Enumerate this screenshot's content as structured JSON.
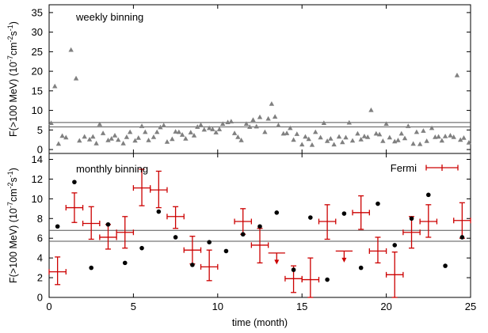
{
  "chart_data": [
    {
      "type": "scatter",
      "panel": "top",
      "annotation": "weekly binning",
      "ylabel": "F(>100 MeV) (10",
      "ylabel_exp1": "-7",
      "ylabel_mid": "cm",
      "ylabel_exp2": "-2",
      "ylabel_s": "s",
      "ylabel_exp3": "-1",
      "ylabel_end": ")",
      "ylim": [
        -1,
        37
      ],
      "yticks": [
        0,
        5,
        10,
        15,
        20,
        25,
        30,
        35
      ],
      "hlines": [
        5.8,
        6.9
      ],
      "colors": {
        "marker": "#808080"
      },
      "marker": "triangle",
      "x": [
        0.12,
        0.34,
        0.56,
        0.78,
        1.0,
        1.3,
        1.6,
        1.8,
        2.1,
        2.4,
        2.6,
        2.8,
        3.0,
        3.2,
        3.5,
        3.7,
        3.9,
        4.1,
        4.4,
        4.6,
        4.8,
        5.1,
        5.3,
        5.5,
        5.7,
        5.9,
        6.2,
        6.4,
        6.6,
        6.8,
        7.0,
        7.3,
        7.5,
        7.7,
        7.9,
        8.1,
        8.4,
        8.6,
        8.8,
        9.0,
        9.2,
        9.5,
        9.7,
        9.9,
        10.1,
        10.3,
        10.6,
        10.8,
        11.0,
        11.2,
        11.4,
        11.7,
        11.9,
        12.1,
        12.3,
        12.5,
        12.8,
        13.0,
        13.2,
        13.4,
        13.6,
        13.9,
        14.1,
        14.3,
        14.5,
        14.7,
        15.0,
        15.2,
        15.4,
        15.6,
        15.8,
        16.1,
        16.3,
        16.5,
        16.7,
        16.9,
        17.2,
        17.4,
        17.6,
        17.8,
        18.0,
        18.3,
        18.5,
        18.7,
        18.9,
        19.1,
        19.4,
        19.6,
        19.8,
        20.0,
        20.2,
        20.5,
        20.7,
        20.9,
        21.1,
        21.3,
        21.6,
        21.8,
        22.0,
        22.2,
        22.4,
        22.7,
        22.9,
        23.1,
        23.3,
        23.5,
        23.8,
        24.0,
        24.2,
        24.4,
        24.6,
        24.9
      ],
      "y": [
        6.8,
        16.2,
        1.5,
        3.5,
        3.1,
        25.5,
        18.2,
        2.3,
        3.3,
        2.6,
        3.3,
        1.6,
        6.5,
        4.2,
        2.4,
        2.8,
        3.6,
        2.5,
        1.6,
        3.2,
        4.5,
        2.3,
        3.0,
        6.0,
        4.5,
        2.4,
        3.2,
        4.5,
        5.7,
        6.2,
        2.0,
        2.7,
        4.6,
        4.5,
        3.8,
        2.8,
        4.4,
        3.6,
        5.8,
        6.3,
        5.1,
        5.5,
        5.2,
        4.4,
        5.2,
        6.6,
        7.0,
        7.2,
        4.2,
        3.2,
        2.4,
        6.6,
        5.8,
        7.6,
        5.9,
        8.3,
        4.5,
        7.9,
        11.7,
        8.4,
        6.2,
        4.1,
        4.2,
        5.5,
        2.5,
        4.0,
        1.3,
        3.3,
        2.7,
        1.2,
        4.5,
        3.1,
        6.8,
        2.2,
        2.8,
        1.3,
        3.3,
        1.9,
        3.1,
        6.9,
        2.3,
        4.1,
        2.6,
        3.4,
        3.2,
        10.1,
        4.1,
        3.9,
        2.2,
        6.6,
        3.1,
        2.1,
        2.4,
        4.1,
        2.9,
        6.0,
        1.5,
        4.5,
        1.4,
        4.8,
        2.2,
        5.5,
        3.2,
        3.3,
        2.3,
        3.4,
        3.6,
        3.2,
        19.0,
        2.5,
        3.0,
        1.8
      ]
    },
    {
      "type": "scatter",
      "panel": "bottom",
      "annotation": "monthly binning",
      "legend": [
        {
          "name": "Fermi"
        }
      ],
      "legend_position": "top-right",
      "xlabel": "time (month)",
      "ylabel": "F(>100 MeV) (10",
      "ylabel_exp1": "-7",
      "ylabel_mid": "cm",
      "ylabel_exp2": "-2",
      "ylabel_s": "s",
      "ylabel_exp3": "-1",
      "ylabel_end": ")",
      "xlim": [
        0,
        25
      ],
      "xticks": [
        0,
        5,
        10,
        15,
        20,
        25
      ],
      "ylim": [
        0,
        14.6
      ],
      "yticks": [
        0,
        2,
        4,
        6,
        8,
        10,
        12,
        14
      ],
      "hlines": [
        5.7,
        6.8
      ],
      "colors": {
        "black": "#000000",
        "fermi": "#cc0000"
      },
      "black_points": {
        "x": [
          0.5,
          1.5,
          2.5,
          3.5,
          4.5,
          5.5,
          6.5,
          7.5,
          8.5,
          9.5,
          10.5,
          11.5,
          12.5,
          13.5,
          14.5,
          15.5,
          16.5,
          17.5,
          18.5,
          19.5,
          20.5,
          21.5,
          22.5,
          23.5,
          24.5
        ],
        "y": [
          7.2,
          11.7,
          3.0,
          7.4,
          3.5,
          5.0,
          8.7,
          6.1,
          3.3,
          5.6,
          4.7,
          6.4,
          7.2,
          8.6,
          2.8,
          8.1,
          1.8,
          8.5,
          3.0,
          9.5,
          5.3,
          8.0,
          10.4,
          3.2,
          6.1
        ]
      },
      "fermi_points": {
        "x": [
          0.5,
          1.5,
          2.5,
          3.5,
          4.5,
          5.5,
          6.5,
          7.5,
          8.5,
          9.5,
          11.5,
          12.5,
          14.5,
          15.5,
          16.5,
          18.5,
          19.5,
          20.5,
          21.5,
          22.5,
          24.5
        ],
        "y": [
          2.6,
          9.1,
          7.5,
          6.1,
          6.6,
          11.1,
          10.9,
          8.2,
          4.8,
          3.1,
          7.7,
          5.3,
          1.9,
          1.8,
          7.7,
          8.6,
          4.7,
          2.3,
          6.6,
          7.7,
          7.8
        ],
        "yerr_low": [
          1.3,
          1.5,
          1.6,
          1.2,
          1.6,
          1.8,
          1.8,
          1.2,
          1.4,
          1.4,
          1.3,
          1.8,
          1.4,
          1.8,
          1.8,
          1.7,
          1.2,
          2.3,
          1.6,
          1.6,
          1.8
        ],
        "yerr_high": [
          1.5,
          1.5,
          1.7,
          1.3,
          1.6,
          1.9,
          1.9,
          1.0,
          1.4,
          1.7,
          1.3,
          1.7,
          1.3,
          2.2,
          1.7,
          1.7,
          1.4,
          2.3,
          1.6,
          1.7,
          1.8
        ],
        "xerr": 0.5
      },
      "upper_limits": {
        "x": [
          13.5,
          17.5
        ],
        "y": [
          4.5,
          4.7
        ],
        "drop": [
          1.0,
          1.0
        ]
      }
    }
  ]
}
